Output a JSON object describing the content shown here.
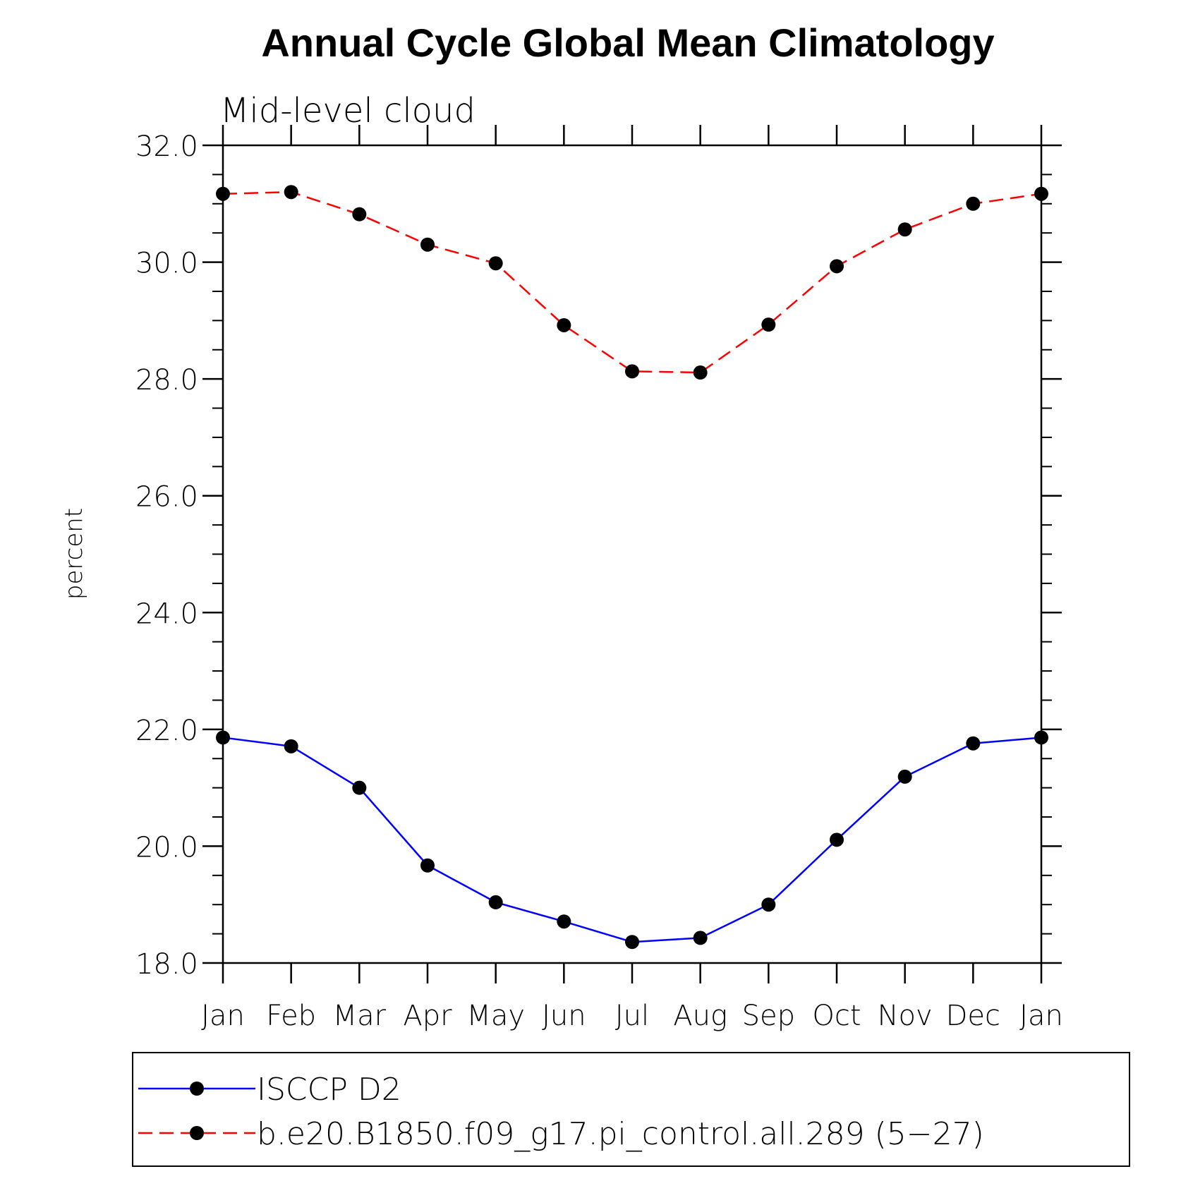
{
  "chart_data": {
    "type": "line",
    "title": "Annual Cycle Global Mean Climatology",
    "subtitle": "Mid-level cloud",
    "xlabel": "",
    "ylabel": "percent",
    "categories": [
      "Jan",
      "Feb",
      "Mar",
      "Apr",
      "May",
      "Jun",
      "Jul",
      "Aug",
      "Sep",
      "Oct",
      "Nov",
      "Dec",
      "Jan"
    ],
    "ylim": [
      18.0,
      32.0
    ],
    "yticks": [
      "18.0",
      "20.0",
      "22.0",
      "24.0",
      "26.0",
      "28.0",
      "30.0",
      "32.0"
    ],
    "grid": false,
    "legend_position": "bottom",
    "series": [
      {
        "name": "ISCCP D2",
        "color": "#0000ff",
        "style": "solid",
        "marker_color": "#000000",
        "values": [
          21.86,
          21.71,
          21.0,
          19.67,
          19.04,
          18.71,
          18.36,
          18.43,
          19.0,
          20.11,
          21.19,
          21.76,
          21.86
        ]
      },
      {
        "name": "b.e20.B1850.f09_g17.pi_control.all.289 (5−27)",
        "color": "#ff0000",
        "style": "dashed",
        "marker_color": "#000000",
        "values": [
          31.17,
          31.2,
          30.82,
          30.3,
          29.98,
          28.92,
          28.13,
          28.11,
          28.93,
          29.93,
          30.56,
          31.0,
          31.17
        ]
      }
    ]
  }
}
